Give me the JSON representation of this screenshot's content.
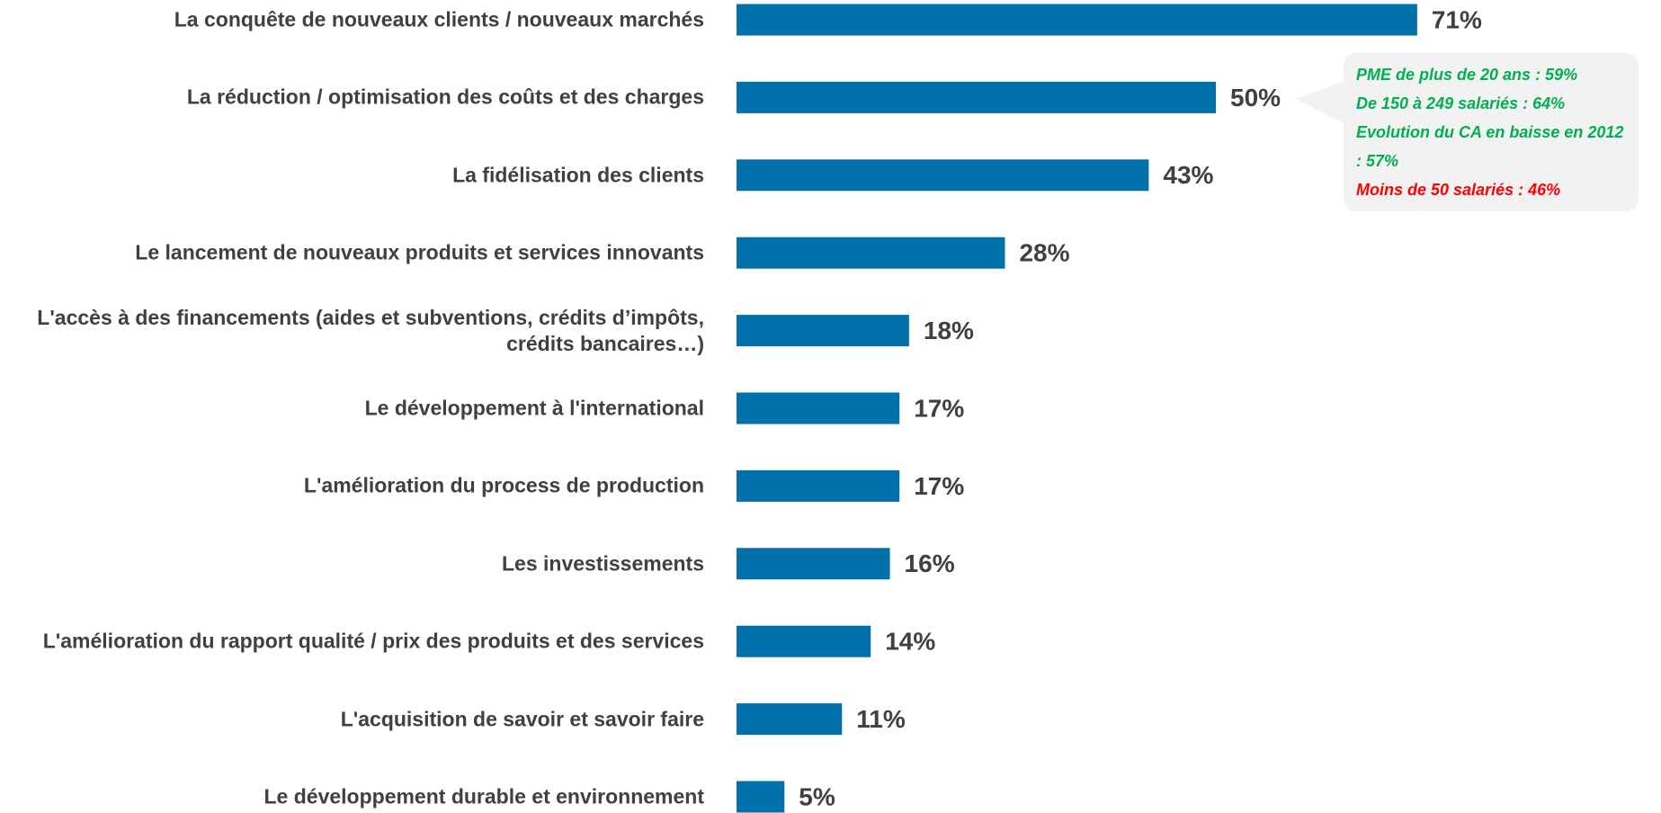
{
  "chart_data": {
    "type": "bar",
    "orientation": "horizontal",
    "color": "#0071aa",
    "categories": [
      "La conquête de nouveaux clients / nouveaux marchés",
      "La réduction / optimisation des coûts et des charges",
      "La fidélisation des clients",
      "Le lancement de nouveaux produits et services innovants",
      "L'accès à des financements (aides et subventions, crédits d’impôts, crédits bancaires…)",
      "Le développement à l'international",
      "L'amélioration du process de production",
      "Les investissements",
      "L'amélioration du rapport qualité / prix des produits et des services",
      "L'acquisition de savoir et savoir faire",
      "Le développement durable et environnement"
    ],
    "values": [
      71,
      50,
      43,
      28,
      18,
      17,
      17,
      16,
      14,
      11,
      5
    ],
    "value_labels": [
      "71%",
      "50%",
      "43%",
      "28%",
      "18%",
      "17%",
      "17%",
      "16%",
      "14%",
      "11%",
      "5%"
    ],
    "annotations": [
      {
        "text": "PME de plus de 20 ans : 59%",
        "color": "#00b050"
      },
      {
        "text": "De 150 à 249 salariés : 64%",
        "color": "#00b050"
      },
      {
        "text": "Evolution du CA en baisse en 2012 : 57%",
        "color": "#00b050"
      },
      {
        "text": "Moins de 50 salariés : 46%",
        "color": "#ff0000"
      }
    ]
  }
}
